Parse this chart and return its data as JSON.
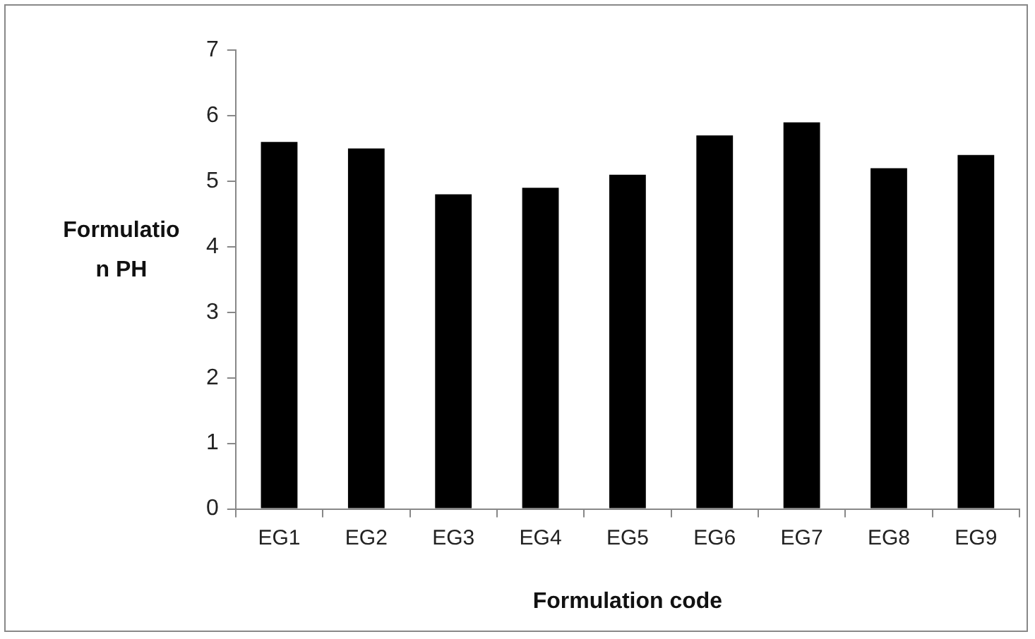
{
  "chart_data": {
    "type": "bar",
    "xlabel": "Formulation code",
    "ylabel": "Formulation PH",
    "categories": [
      "EG1",
      "EG2",
      "EG3",
      "EG4",
      "EG5",
      "EG6",
      "EG7",
      "EG8",
      "EG9"
    ],
    "values": [
      5.6,
      5.5,
      4.8,
      4.9,
      5.1,
      5.7,
      5.9,
      5.2,
      5.4
    ],
    "color": "#000000",
    "ylim": [
      0,
      7
    ],
    "yticks": [
      0,
      1,
      2,
      3,
      4,
      5,
      6,
      7
    ],
    "grid": false,
    "legend": false
  }
}
